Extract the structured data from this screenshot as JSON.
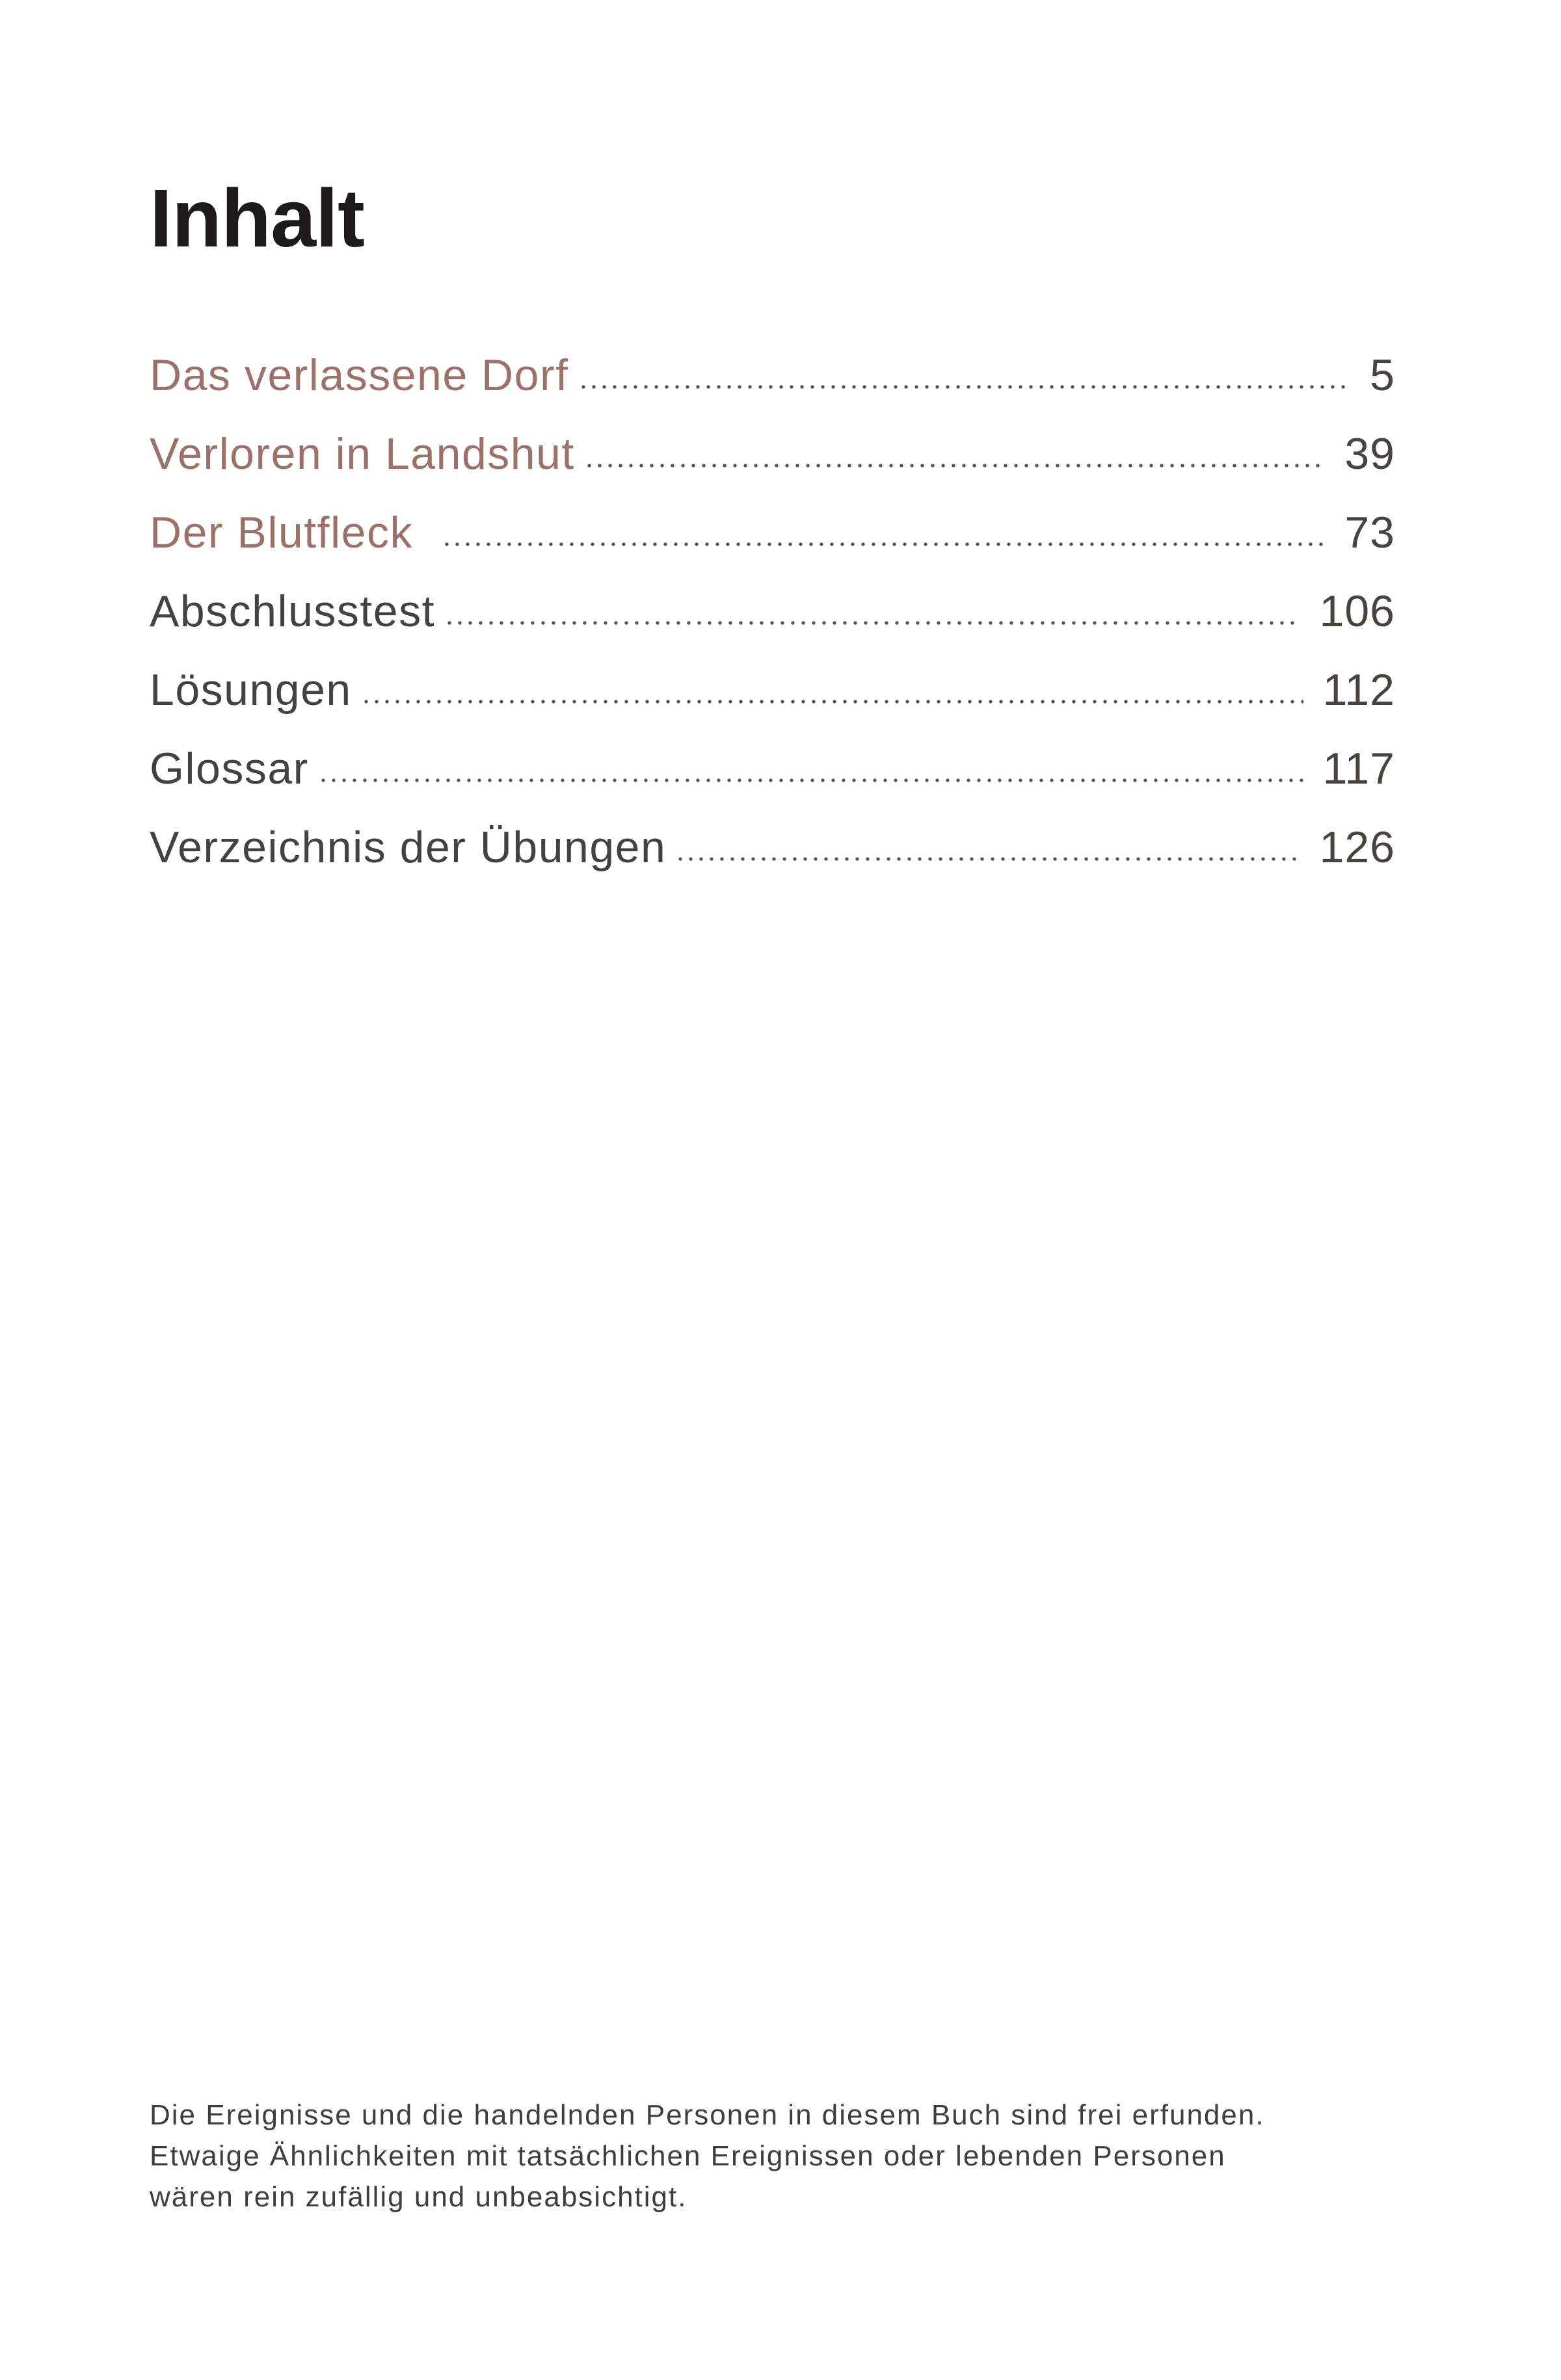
{
  "page": {
    "title": "Inhalt"
  },
  "toc": {
    "entries": [
      {
        "label": "Das verlassene Dorf",
        "page": "5",
        "highlight": true,
        "wide_gap": false
      },
      {
        "label": "Verloren in Landshut",
        "page": "39",
        "highlight": true,
        "wide_gap": false
      },
      {
        "label": "Der Blutfleck",
        "page": "73",
        "highlight": true,
        "wide_gap": true
      },
      {
        "label": "Abschlusstest",
        "page": "106",
        "highlight": false,
        "wide_gap": false
      },
      {
        "label": "Lösungen",
        "page": "112",
        "highlight": false,
        "wide_gap": false
      },
      {
        "label": "Glossar",
        "page": "117",
        "highlight": false,
        "wide_gap": false
      },
      {
        "label": "Verzeichnis der Übungen",
        "page": "126",
        "highlight": false,
        "wide_gap": false
      }
    ]
  },
  "disclaimer": {
    "lines": [
      "Die Ereignisse und die handelnden Personen in diesem Buch sind frei erfunden.",
      "Etwaige Ähnlichkeiten mit tatsächlichen Ereignissen oder lebenden Personen",
      "wären rein zufällig und unbeabsichtigt."
    ]
  },
  "colors": {
    "accent_rosy": "#9c716b",
    "text_dark": "#444240",
    "title_color": "#1d1b1a",
    "dots_color": "#57524d",
    "number_color": "#47443f",
    "disclaimer_color": "#403e3b",
    "page_bg": "#ffffff"
  }
}
